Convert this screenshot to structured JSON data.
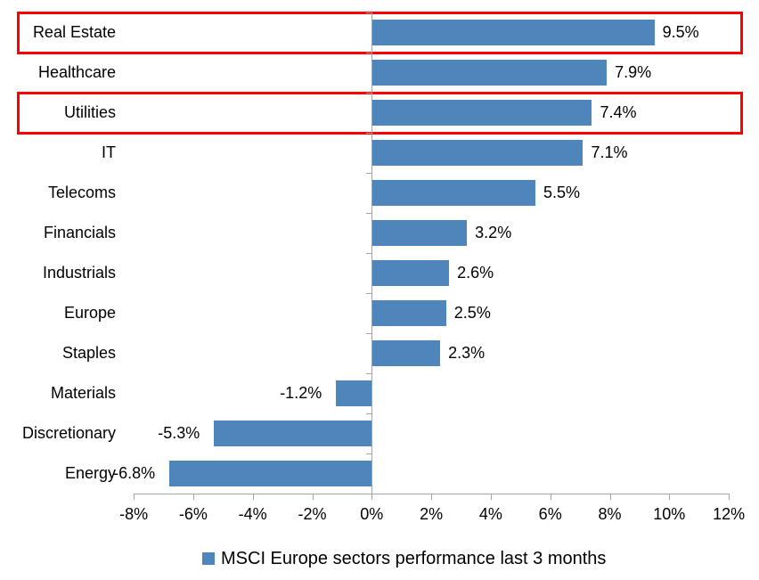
{
  "chart_data": {
    "type": "bar",
    "orientation": "horizontal",
    "title": "",
    "categories": [
      "Real Estate",
      "Healthcare",
      "Utilities",
      "IT",
      "Telecoms",
      "Financials",
      "Industrials",
      "Europe",
      "Staples",
      "Materials",
      "Discretionary",
      "Energy"
    ],
    "values": [
      9.5,
      7.9,
      7.4,
      7.1,
      5.5,
      3.2,
      2.6,
      2.5,
      2.3,
      -1.2,
      -5.3,
      -6.8
    ],
    "data_labels": [
      "9.5%",
      "7.9%",
      "7.4%",
      "7.1%",
      "5.5%",
      "3.2%",
      "2.6%",
      "2.5%",
      "2.3%",
      "-1.2%",
      "-5.3%",
      "-6.8%"
    ],
    "xlim": [
      -8,
      12
    ],
    "x_ticks": [
      -8,
      -6,
      -4,
      -2,
      0,
      2,
      4,
      6,
      8,
      10,
      12
    ],
    "x_tick_labels": [
      "-8%",
      "-6%",
      "-4%",
      "-2%",
      "0%",
      "2%",
      "4%",
      "6%",
      "8%",
      "10%",
      "12%"
    ],
    "grid": false,
    "legend": "MSCI Europe sectors performance last 3 months",
    "legend_position": "bottom",
    "bar_color": "#4e86bc",
    "axis_color": "#a3a3a3",
    "text_color": "#000000",
    "highlight_color": "#fe0000",
    "highlighted_categories": [
      "Real Estate",
      "Utilities"
    ]
  }
}
